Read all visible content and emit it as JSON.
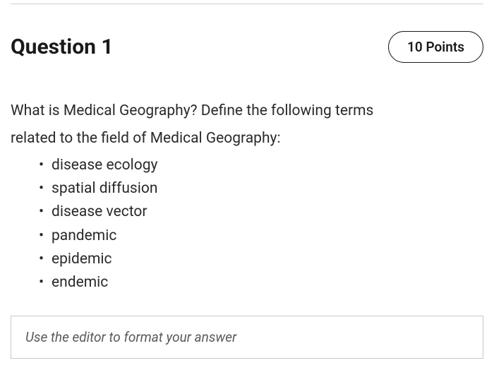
{
  "question": {
    "title": "Question 1",
    "points_label": "10 Points",
    "prompt_line1": "What is Medical Geography? Define the following terms",
    "prompt_line2": "related to the field of Medical Geography:",
    "terms": [
      "disease ecology",
      "spatial diffusion",
      "disease vector",
      "pandemic",
      "epidemic",
      "endemic"
    ]
  },
  "editor": {
    "placeholder": "Use the editor to format your answer"
  },
  "styling": {
    "background_color": "#ffffff",
    "text_color": "#2a2a2a",
    "title_color": "#1a1a1a",
    "border_color": "#c8c8c8",
    "divider_color": "#d0d0d0",
    "placeholder_color": "#5a5a5a",
    "title_fontsize": 30,
    "body_fontsize": 21,
    "points_fontsize": 19,
    "badge_border_radius": 24
  }
}
